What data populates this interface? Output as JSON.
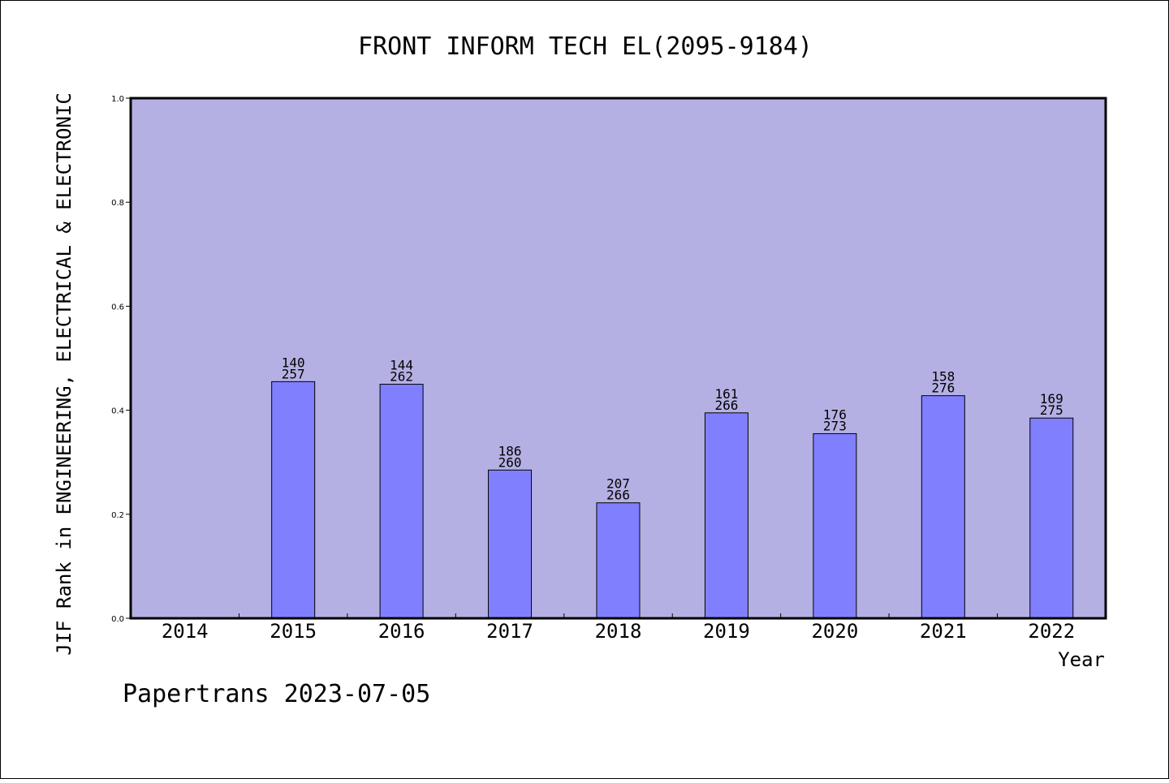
{
  "chart_data": {
    "type": "bar",
    "title": "FRONT INFORM TECH EL(2095-9184)",
    "xlabel": "Year",
    "ylabel": "JIF Rank in ENGINEERING, ELECTRICAL & ELECTRONIC",
    "ylim": [
      0,
      1.0
    ],
    "yticks": [
      "0.0",
      "0.2",
      "0.4",
      "0.6",
      "0.8",
      "1.0"
    ],
    "grid": false,
    "categories": [
      "2014",
      "2015",
      "2016",
      "2017",
      "2018",
      "2019",
      "2020",
      "2021",
      "2022"
    ],
    "values": [
      null,
      0.455,
      0.45,
      0.285,
      0.222,
      0.395,
      0.355,
      0.428,
      0.385
    ],
    "rank_labels": [
      null,
      [
        "140",
        "257"
      ],
      [
        "144",
        "262"
      ],
      [
        "186",
        "260"
      ],
      [
        "207",
        "266"
      ],
      [
        "161",
        "266"
      ],
      [
        "176",
        "273"
      ],
      [
        "158",
        "276"
      ],
      [
        "169",
        "275"
      ]
    ],
    "colors": {
      "plot_background": "#b5b0e3",
      "bar_fill": "#8080ff",
      "bar_stroke": "#000000"
    }
  },
  "footer": "Papertrans 2023-07-05"
}
